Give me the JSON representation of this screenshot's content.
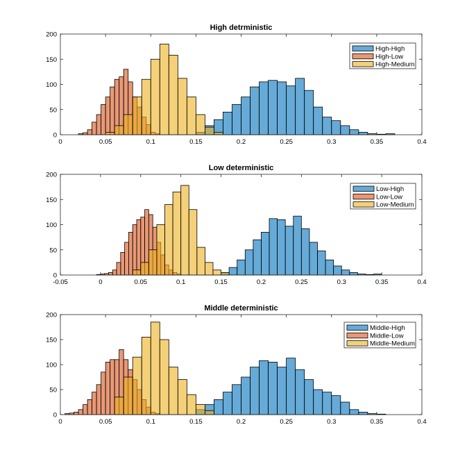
{
  "chart_data": [
    {
      "type": "histogram",
      "title": "High detrministic",
      "xlim": [
        0,
        0.4
      ],
      "ylim": [
        0,
        200
      ],
      "xticks": [
        0,
        0.05,
        0.1,
        0.15,
        0.2,
        0.25,
        0.3,
        0.35,
        0.4
      ],
      "xtick_labels": [
        "0",
        "0.05",
        "0.1",
        "0.15",
        "0.2",
        "0.25",
        "0.3",
        "0.35",
        "0.4"
      ],
      "yticks": [
        0,
        50,
        100,
        150,
        200
      ],
      "ytick_labels": [
        "0",
        "50",
        "100",
        "150",
        "200"
      ],
      "legend_position": "top-right",
      "grid": false,
      "series": [
        {
          "name": "High-Low",
          "color": "#D95319",
          "bin_start": 0.02,
          "bin_width": 0.005,
          "values": [
            2,
            4,
            10,
            25,
            40,
            60,
            75,
            95,
            110,
            115,
            130,
            105,
            75,
            55,
            35,
            20,
            5,
            2
          ]
        },
        {
          "name": "High-Medium",
          "color": "#EDB120",
          "bin_start": 0.05,
          "bin_width": 0.01,
          "values": [
            5,
            18,
            40,
            75,
            110,
            150,
            180,
            158,
            112,
            75,
            40,
            15,
            5
          ]
        },
        {
          "name": "High-High",
          "color": "#0072BD",
          "bin_start": 0.15,
          "bin_width": 0.01,
          "values": [
            5,
            18,
            30,
            45,
            60,
            75,
            95,
            105,
            108,
            105,
            97,
            112,
            88,
            55,
            35,
            28,
            18,
            10,
            5,
            2,
            1,
            2
          ]
        }
      ]
    },
    {
      "type": "histogram",
      "title": "Low deterministic",
      "xlim": [
        -0.05,
        0.4
      ],
      "ylim": [
        0,
        200
      ],
      "xticks": [
        -0.05,
        0,
        0.05,
        0.1,
        0.15,
        0.2,
        0.25,
        0.3,
        0.35,
        0.4
      ],
      "xtick_labels": [
        "-0.05",
        "0",
        "0.05",
        "0.1",
        "0.15",
        "0.2",
        "0.25",
        "0.3",
        "0.35",
        "0.4"
      ],
      "yticks": [
        0,
        50,
        100,
        150,
        200
      ],
      "ytick_labels": [
        "0",
        "50",
        "100",
        "150",
        "200"
      ],
      "legend_position": "top-right",
      "grid": false,
      "series": [
        {
          "name": "Low-Low",
          "color": "#D95319",
          "bin_start": -0.005,
          "bin_width": 0.005,
          "values": [
            1,
            2,
            3,
            5,
            10,
            25,
            45,
            65,
            85,
            100,
            110,
            115,
            130,
            120,
            95,
            65,
            40,
            20,
            10,
            5,
            2
          ]
        },
        {
          "name": "Low-Medium",
          "color": "#EDB120",
          "bin_start": 0.04,
          "bin_width": 0.01,
          "values": [
            10,
            25,
            50,
            100,
            140,
            165,
            178,
            130,
            55,
            25,
            10,
            5
          ]
        },
        {
          "name": "Low-High",
          "color": "#0072BD",
          "bin_start": 0.15,
          "bin_width": 0.01,
          "values": [
            5,
            15,
            30,
            50,
            70,
            85,
            112,
            110,
            97,
            117,
            92,
            65,
            48,
            30,
            18,
            10,
            5,
            2,
            1,
            2
          ]
        }
      ]
    },
    {
      "type": "histogram",
      "title": "Middle deterministic",
      "xlim": [
        0,
        0.4
      ],
      "ylim": [
        0,
        200
      ],
      "xticks": [
        0,
        0.05,
        0.1,
        0.15,
        0.2,
        0.25,
        0.3,
        0.35,
        0.4
      ],
      "xtick_labels": [
        "0",
        "0.05",
        "0.1",
        "0.15",
        "0.2",
        "0.25",
        "0.3",
        "0.35",
        "0.4"
      ],
      "yticks": [
        0,
        50,
        100,
        150,
        200
      ],
      "ytick_labels": [
        "0",
        "50",
        "100",
        "150",
        "200"
      ],
      "legend_position": "top-right",
      "grid": false,
      "series": [
        {
          "name": "Middle-Low",
          "color": "#D95319",
          "bin_start": 0.005,
          "bin_width": 0.005,
          "values": [
            2,
            3,
            5,
            10,
            20,
            30,
            45,
            60,
            85,
            105,
            110,
            110,
            130,
            110,
            90,
            70,
            50,
            30,
            15,
            5,
            2
          ]
        },
        {
          "name": "Middle-Medium",
          "color": "#EDB120",
          "bin_start": 0.06,
          "bin_width": 0.01,
          "values": [
            35,
            75,
            115,
            155,
            185,
            150,
            95,
            70,
            40,
            20,
            8
          ]
        },
        {
          "name": "Middle-High",
          "color": "#0072BD",
          "bin_start": 0.15,
          "bin_width": 0.01,
          "values": [
            10,
            20,
            30,
            45,
            60,
            75,
            95,
            108,
            105,
            95,
            113,
            90,
            70,
            50,
            45,
            38,
            25,
            10,
            5,
            2,
            1
          ]
        }
      ]
    }
  ]
}
